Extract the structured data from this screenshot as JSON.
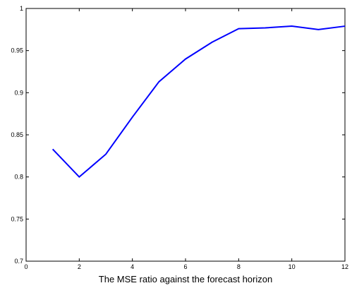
{
  "chart_data": {
    "type": "line",
    "title": "",
    "xlabel": "The MSE ratio against the forecast horizon",
    "ylabel": "",
    "xlim": [
      0,
      12
    ],
    "ylim": [
      0.7,
      1
    ],
    "x_ticks": [
      0,
      2,
      4,
      6,
      8,
      10,
      12
    ],
    "x_tick_labels": [
      "0",
      "2",
      "4",
      "6",
      "8",
      "10",
      "12"
    ],
    "y_ticks": [
      0.7,
      0.75,
      0.8,
      0.85,
      0.9,
      0.95,
      1
    ],
    "y_tick_labels": [
      "0.7",
      "0.75",
      "0.8",
      "0.85",
      "0.9",
      "0.95",
      "1"
    ],
    "grid": false,
    "legend": "none",
    "series": [
      {
        "color": "#0000ff",
        "x": [
          1,
          2,
          3,
          4,
          5,
          6,
          7,
          8,
          9,
          10,
          11,
          12
        ],
        "y": [
          0.833,
          0.8,
          0.827,
          0.871,
          0.913,
          0.94,
          0.96,
          0.976,
          0.977,
          0.979,
          0.975,
          0.979
        ]
      }
    ]
  }
}
